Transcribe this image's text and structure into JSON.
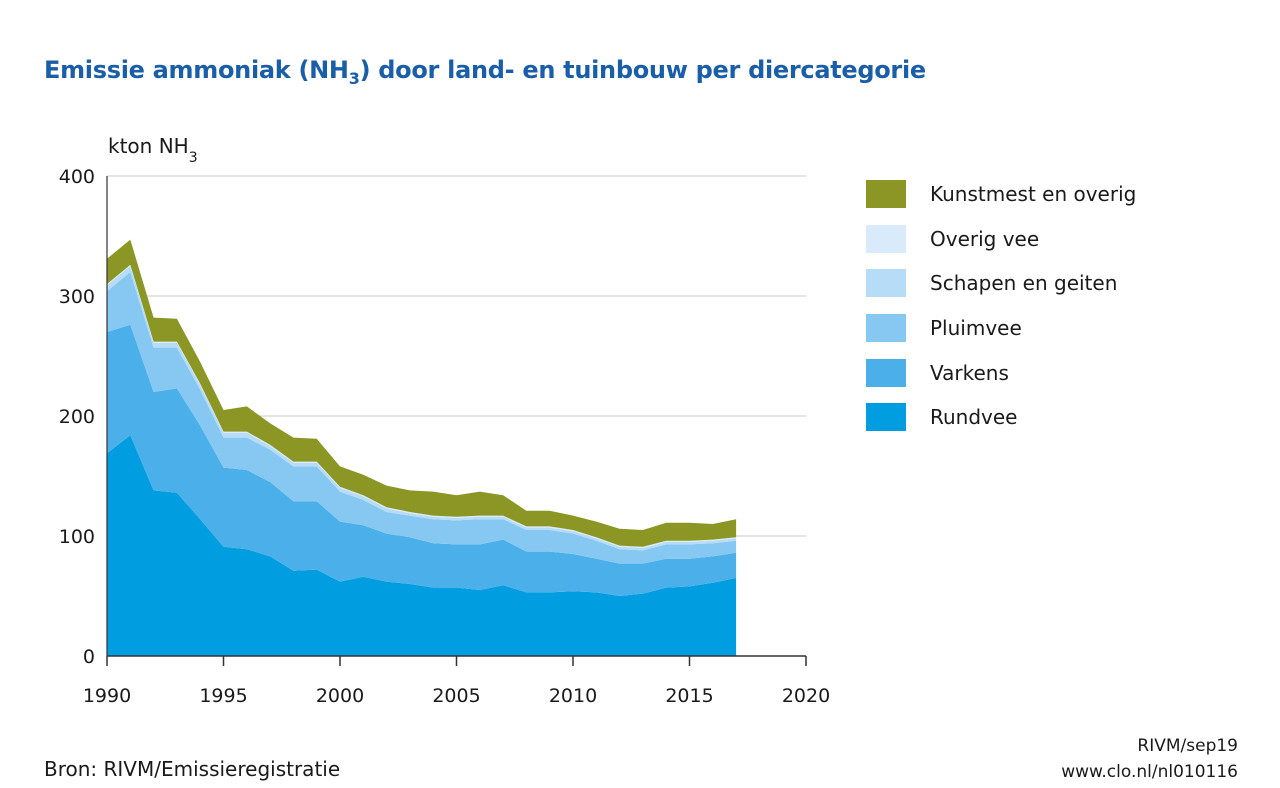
{
  "title": {
    "main": "Emissie ammoniak (NH",
    "sub": "3",
    "rest": ") door land- en tuinbouw per diercategorie"
  },
  "source": "Bron: RIVM/Emissieregistratie",
  "credit": {
    "line1": "RIVM/sep19",
    "line2": "www.clo.nl/nl010116"
  },
  "chart_data": {
    "type": "area",
    "stacked": true,
    "ylabel": "kton NH",
    "ylabel_sub": "3",
    "xlim": [
      1990,
      2020
    ],
    "ylim": [
      0,
      400
    ],
    "xticks": [
      1990,
      1995,
      2000,
      2005,
      2010,
      2015,
      2020
    ],
    "yticks": [
      0,
      100,
      200,
      300,
      400
    ],
    "grid": "horizontal",
    "legend_position": "right",
    "x": [
      1990,
      1991,
      1992,
      1993,
      1994,
      1995,
      1996,
      1997,
      1998,
      1999,
      2000,
      2001,
      2002,
      2003,
      2004,
      2005,
      2006,
      2007,
      2008,
      2009,
      2010,
      2011,
      2012,
      2013,
      2014,
      2015,
      2016,
      2017
    ],
    "series": [
      {
        "name": "Rundvee",
        "color": "#009ee0",
        "values": [
          169,
          184,
          138,
          136,
          114,
          91,
          89,
          83,
          71,
          72,
          62,
          66,
          62,
          60,
          57,
          57,
          55,
          59,
          53,
          53,
          54,
          53,
          50,
          52,
          57,
          58,
          61,
          65
        ]
      },
      {
        "name": "Varkens",
        "color": "#4bb0ea",
        "values": [
          101,
          92,
          82,
          87,
          78,
          66,
          66,
          62,
          58,
          57,
          50,
          43,
          40,
          39,
          37,
          36,
          38,
          38,
          34,
          34,
          31,
          28,
          27,
          25,
          24,
          23,
          22,
          21
        ]
      },
      {
        "name": "Pluimvee",
        "color": "#86c8f2",
        "values": [
          34,
          44,
          37,
          34,
          30,
          25,
          27,
          27,
          29,
          29,
          25,
          21,
          18,
          18,
          20,
          20,
          21,
          17,
          18,
          18,
          17,
          15,
          12,
          11,
          12,
          12,
          11,
          10
        ]
      },
      {
        "name": "Schapen en geiten",
        "color": "#b7dcf7",
        "values": [
          5,
          5,
          4,
          4,
          4,
          4,
          4,
          3,
          3,
          3,
          3,
          3,
          3,
          2,
          2,
          2,
          2,
          2,
          2,
          2,
          2,
          2,
          2,
          2,
          2,
          2,
          2,
          2
        ]
      },
      {
        "name": "Overig vee",
        "color": "#d9ebfb",
        "values": [
          1,
          1,
          1,
          1,
          1,
          1,
          1,
          1,
          1,
          1,
          1,
          1,
          1,
          1,
          1,
          1,
          1,
          1,
          1,
          1,
          1,
          1,
          1,
          1,
          1,
          1,
          1,
          1
        ]
      },
      {
        "name": "Kunstmest en overig",
        "color": "#8c9624",
        "values": [
          21,
          21,
          20,
          19,
          18,
          18,
          21,
          18,
          20,
          19,
          17,
          17,
          18,
          18,
          20,
          18,
          20,
          17,
          13,
          13,
          12,
          13,
          14,
          14,
          15,
          15,
          13,
          15
        ]
      }
    ]
  }
}
